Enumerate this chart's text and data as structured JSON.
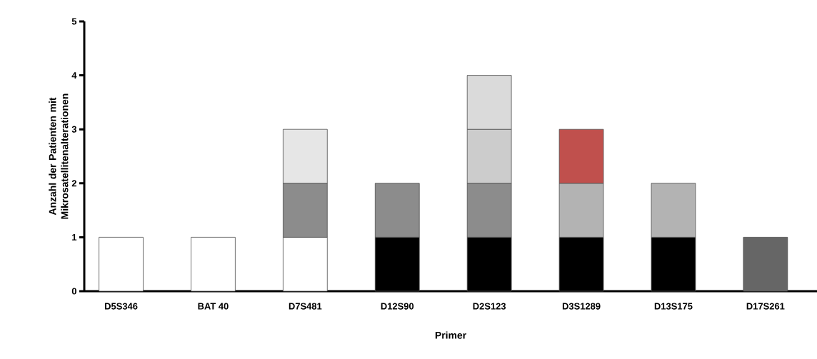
{
  "chart_data": {
    "type": "bar",
    "stacked": true,
    "xlabel": "Primer",
    "ylabel": "Anzahl der Patienten mit Mikrosatellitenalterationen",
    "categories": [
      "D5S346",
      "BAT 40",
      "D7S481",
      "D12S90",
      "D2S123",
      "D3S1289",
      "D13S175",
      "D17S261"
    ],
    "series": [
      {
        "color": "#ffffff",
        "values": [
          1,
          1,
          1,
          null,
          null,
          null,
          null,
          null
        ]
      },
      {
        "color": "#000000",
        "values": [
          null,
          null,
          null,
          1,
          1,
          1,
          1,
          null
        ]
      },
      {
        "color": "#666666",
        "values": [
          null,
          null,
          null,
          null,
          null,
          null,
          null,
          1
        ]
      },
      {
        "color": "#8c8c8c",
        "values": [
          null,
          null,
          1,
          1,
          1,
          null,
          null,
          null
        ]
      },
      {
        "color": "#b3b3b3",
        "values": [
          null,
          null,
          null,
          null,
          null,
          1,
          1,
          null
        ]
      },
      {
        "color": "#cccccc",
        "values": [
          null,
          null,
          null,
          null,
          1,
          null,
          null,
          null
        ]
      },
      {
        "color": "#e6e6e6",
        "values": [
          null,
          null,
          1,
          null,
          null,
          null,
          null,
          null
        ]
      },
      {
        "color": "#dadada",
        "values": [
          null,
          null,
          null,
          null,
          1,
          null,
          null,
          null
        ]
      },
      {
        "color": "#c0504d",
        "values": [
          null,
          null,
          null,
          null,
          null,
          1,
          null,
          null
        ]
      }
    ],
    "ylim": [
      0,
      5
    ],
    "yticks": [
      0,
      1,
      2,
      3,
      4,
      5
    ],
    "grid": false
  }
}
